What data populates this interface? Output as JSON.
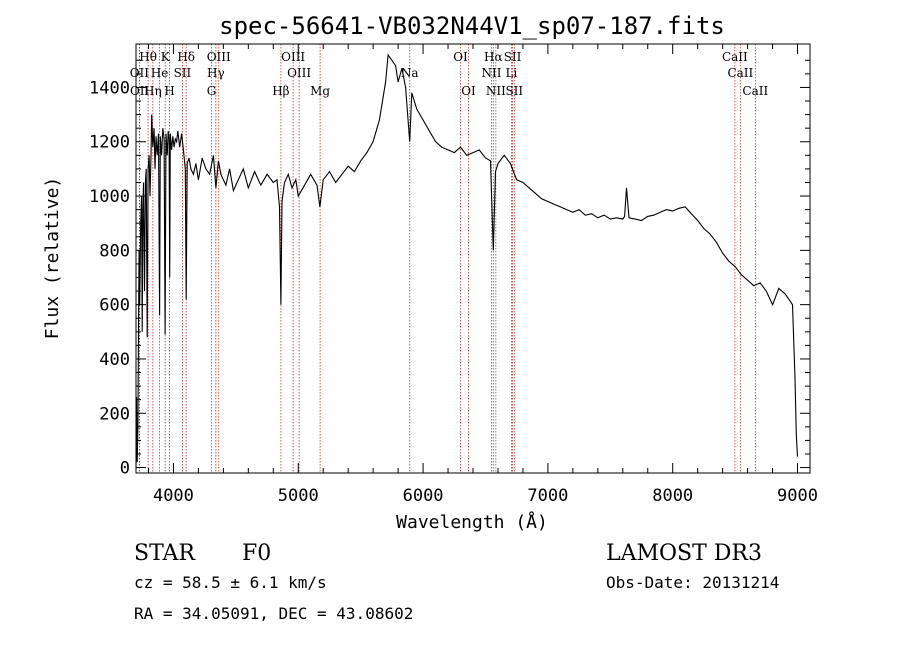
{
  "chart_data": {
    "type": "line",
    "title": "spec-56641-VB032N44V1_sp07-187.fits",
    "xlabel": "Wavelength (Å)",
    "ylabel": "Flux (relative)",
    "xlim": [
      3700,
      9100
    ],
    "ylim": [
      -20,
      1560
    ],
    "xticks": [
      4000,
      5000,
      6000,
      7000,
      8000,
      9000
    ],
    "yticks": [
      0,
      200,
      400,
      600,
      800,
      1000,
      1200,
      1400
    ],
    "line_color": "#000000",
    "marker_color": "#c0392b",
    "spectrum": {
      "x": [
        3700,
        3705,
        3710,
        3715,
        3720,
        3725,
        3730,
        3738,
        3745,
        3750,
        3755,
        3760,
        3768,
        3775,
        3782,
        3790,
        3797,
        3805,
        3812,
        3820,
        3826,
        3835,
        3845,
        3852,
        3860,
        3870,
        3880,
        3889,
        3895,
        3905,
        3915,
        3925,
        3933,
        3940,
        3950,
        3958,
        3965,
        3970,
        3975,
        3985,
        3995,
        4005,
        4015,
        4025,
        4035,
        4050,
        4065,
        4080,
        4095,
        4102,
        4110,
        4125,
        4140,
        4160,
        4180,
        4200,
        4230,
        4260,
        4290,
        4320,
        4340,
        4360,
        4380,
        4400,
        4420,
        4450,
        4480,
        4520,
        4560,
        4600,
        4650,
        4700,
        4750,
        4800,
        4830,
        4850,
        4861,
        4870,
        4890,
        4920,
        4950,
        4980,
        5000,
        5050,
        5100,
        5150,
        5173,
        5200,
        5250,
        5300,
        5350,
        5400,
        5450,
        5500,
        5550,
        5600,
        5650,
        5700,
        5720,
        5750,
        5780,
        5800,
        5830,
        5860,
        5893,
        5910,
        5950,
        6000,
        6050,
        6100,
        6150,
        6200,
        6250,
        6300,
        6350,
        6400,
        6450,
        6500,
        6540,
        6563,
        6580,
        6600,
        6650,
        6700,
        6750,
        6800,
        6850,
        6900,
        6950,
        7000,
        7050,
        7100,
        7150,
        7200,
        7250,
        7300,
        7350,
        7400,
        7450,
        7500,
        7550,
        7600,
        7615,
        7630,
        7650,
        7700,
        7750,
        7800,
        7850,
        7900,
        7950,
        8000,
        8050,
        8100,
        8150,
        8200,
        8250,
        8300,
        8350,
        8400,
        8450,
        8500,
        8550,
        8600,
        8650,
        8700,
        8750,
        8800,
        8850,
        8900,
        8930,
        8960,
        8980,
        8990,
        9000
      ],
      "y": [
        0,
        260,
        20,
        150,
        500,
        800,
        600,
        900,
        1000,
        500,
        950,
        1050,
        650,
        1050,
        1100,
        480,
        1100,
        1150,
        1000,
        1150,
        1300,
        1180,
        1250,
        1100,
        1220,
        1150,
        1230,
        560,
        1220,
        1150,
        1250,
        1210,
        490,
        1230,
        1150,
        1240,
        1210,
        700,
        1230,
        1170,
        1220,
        1180,
        1210,
        1200,
        1240,
        1180,
        1230,
        1170,
        1100,
        620,
        1120,
        1140,
        1100,
        1080,
        1120,
        1060,
        1140,
        1100,
        1080,
        1150,
        1030,
        1130,
        1080,
        1060,
        1040,
        1100,
        1020,
        1060,
        1100,
        1030,
        1090,
        1040,
        1080,
        1050,
        1060,
        960,
        600,
        980,
        1050,
        1080,
        1030,
        1060,
        1000,
        1040,
        1080,
        1040,
        960,
        1060,
        1090,
        1050,
        1080,
        1110,
        1090,
        1130,
        1160,
        1200,
        1280,
        1420,
        1520,
        1500,
        1480,
        1420,
        1470,
        1400,
        1200,
        1380,
        1320,
        1280,
        1240,
        1200,
        1180,
        1170,
        1160,
        1180,
        1150,
        1160,
        1170,
        1140,
        1130,
        800,
        1090,
        1120,
        1150,
        1120,
        1060,
        1050,
        1030,
        1010,
        990,
        980,
        970,
        960,
        950,
        940,
        950,
        930,
        935,
        920,
        930,
        915,
        920,
        915,
        925,
        1030,
        920,
        915,
        910,
        925,
        930,
        940,
        950,
        945,
        955,
        960,
        935,
        910,
        880,
        860,
        830,
        790,
        760,
        740,
        710,
        690,
        670,
        680,
        650,
        600,
        660,
        640,
        620,
        600,
        330,
        120,
        40
      ]
    },
    "lines": [
      {
        "label": "Hθ",
        "x": 3797,
        "row": 1
      },
      {
        "label": "K",
        "x": 3934,
        "row": 1
      },
      {
        "label": "Hδ",
        "x": 4102,
        "row": 1
      },
      {
        "label": "OIII",
        "x": 4363,
        "row": 1
      },
      {
        "label": "OIII",
        "x": 4959,
        "row": 1
      },
      {
        "label": "OI",
        "x": 6300,
        "row": 1
      },
      {
        "label": "Hα",
        "x": 6563,
        "row": 1
      },
      {
        "label": "SII",
        "x": 6717,
        "row": 1
      },
      {
        "label": "CaII",
        "x": 8498,
        "row": 1
      },
      {
        "label": "OII",
        "x": 3727,
        "row": 2
      },
      {
        "label": "He",
        "x": 3889,
        "row": 2
      },
      {
        "label": "SII",
        "x": 4072,
        "row": 2
      },
      {
        "label": "Hγ",
        "x": 4340,
        "row": 2
      },
      {
        "label": "OIII",
        "x": 5007,
        "row": 2
      },
      {
        "label": "Na",
        "x": 5893,
        "row": 2
      },
      {
        "label": "NII",
        "x": 6548,
        "row": 2
      },
      {
        "label": "Li",
        "x": 6708,
        "row": 2
      },
      {
        "label": "CaII",
        "x": 8542,
        "row": 2
      },
      {
        "label": "OII",
        "x": 3729,
        "row": 3
      },
      {
        "label": "Hη",
        "x": 3835,
        "row": 3
      },
      {
        "label": "H",
        "x": 3969,
        "row": 3
      },
      {
        "label": "G",
        "x": 4305,
        "row": 3
      },
      {
        "label": "Hβ",
        "x": 4861,
        "row": 3
      },
      {
        "label": "Mg",
        "x": 5175,
        "row": 3
      },
      {
        "label": "OI",
        "x": 6364,
        "row": 3
      },
      {
        "label": "NII",
        "x": 6583,
        "row": 3
      },
      {
        "label": "SII",
        "x": 6731,
        "row": 3
      },
      {
        "label": "CaII",
        "x": 8662,
        "row": 3
      }
    ]
  },
  "info": {
    "class": "STAR",
    "subclass": "F0",
    "survey": "LAMOST DR3",
    "cz": "cz = 58.5 ± 6.1 km/s",
    "obs_date": "Obs-Date: 20131214",
    "radec": "RA =  34.05091, DEC =  43.08602"
  }
}
